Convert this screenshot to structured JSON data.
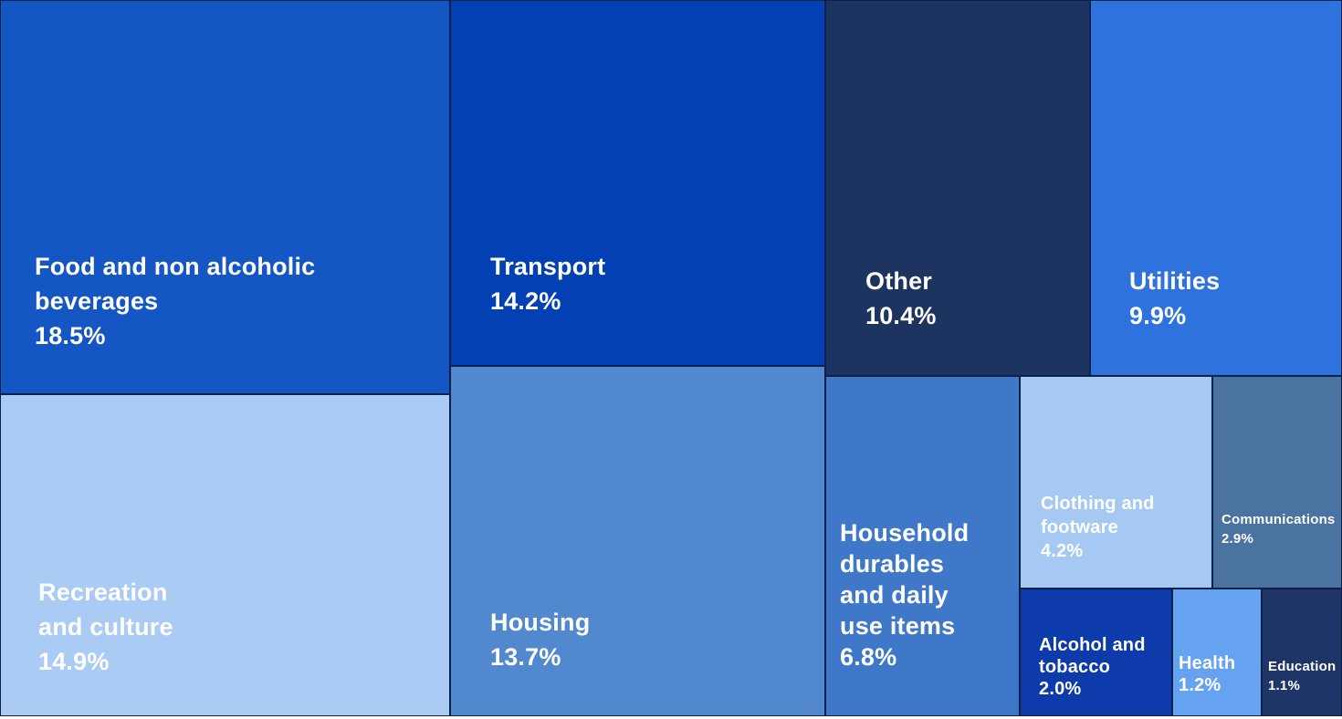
{
  "chart_data": {
    "type": "treemap",
    "title": "",
    "legend": "none",
    "text_color": "#FFFFFF",
    "separator_color": "#0C2149",
    "items": [
      {
        "label": "Food and non alcoholic beverages",
        "label_lines": [
          "Food and non alcoholic",
          "beverages"
        ],
        "value": 18.5,
        "value_display": "18.5%",
        "color": "#1356C4"
      },
      {
        "label": "Transport",
        "label_lines": [
          "Transport"
        ],
        "value": 14.2,
        "value_display": "14.2%",
        "color": "#0340B4"
      },
      {
        "label": "Other",
        "label_lines": [
          "Other"
        ],
        "value": 10.4,
        "value_display": "10.4%",
        "color": "#1C345F"
      },
      {
        "label": "Utilities",
        "label_lines": [
          "Utilities"
        ],
        "value": 9.9,
        "value_display": "9.9%",
        "color": "#2D72DD"
      },
      {
        "label": "Recreation and culture",
        "label_lines": [
          "Recreation",
          "and culture"
        ],
        "value": 14.9,
        "value_display": "14.9%",
        "color": "#A9CBF4"
      },
      {
        "label": "Housing",
        "label_lines": [
          "Housing"
        ],
        "value": 13.7,
        "value_display": "13.7%",
        "color": "#5289CE"
      },
      {
        "label": "Household durables and daily use items",
        "label_lines": [
          "Household",
          "durables",
          "and daily",
          "use items"
        ],
        "value": 6.8,
        "value_display": "6.8%",
        "color": "#3F78C9"
      },
      {
        "label": "Clothing and footware",
        "label_lines": [
          "Clothing and",
          "footware"
        ],
        "value": 4.2,
        "value_display": "4.2%",
        "color": "#A6C9F3"
      },
      {
        "label": "Communications",
        "label_lines": [
          "Communications"
        ],
        "value": 2.9,
        "value_display": "2.9%",
        "color": "#4A73A1"
      },
      {
        "label": "Alcohol and tobacco",
        "label_lines": [
          "Alcohol and",
          "tobacco"
        ],
        "value": 2.0,
        "value_display": "2.0%",
        "color": "#0D3BAB"
      },
      {
        "label": "Health",
        "label_lines": [
          "Health"
        ],
        "value": 1.2,
        "value_display": "1.2%",
        "color": "#65A2F0"
      },
      {
        "label": "Education",
        "label_lines": [
          "Education"
        ],
        "value": 1.1,
        "value_display": "1.1%",
        "color": "#1F3567"
      }
    ]
  }
}
